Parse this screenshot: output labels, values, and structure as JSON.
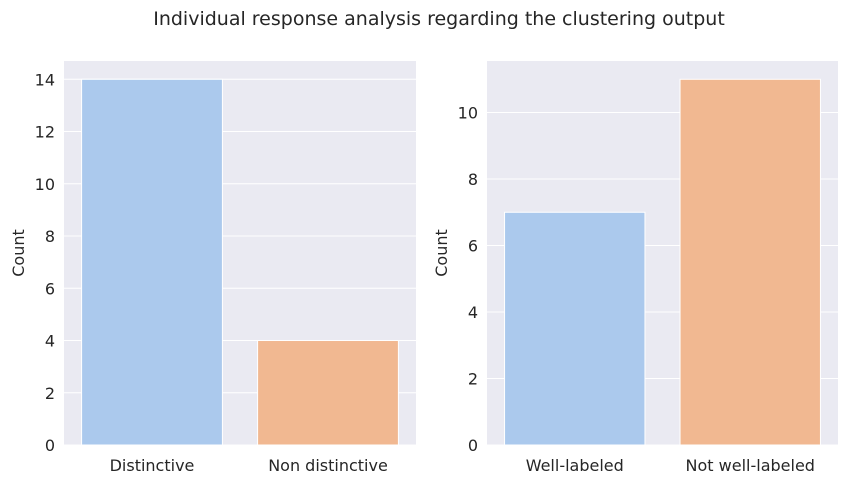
{
  "figure": {
    "title": "Individual response analysis regarding the clustering output"
  },
  "chart_data": [
    {
      "type": "bar",
      "categories": [
        "Distinctive",
        "Non distinctive"
      ],
      "values": [
        14,
        4
      ],
      "title": "",
      "xlabel": "",
      "ylabel": "Count",
      "ylim": [
        0,
        14.7
      ],
      "yticks": [
        0,
        2,
        4,
        6,
        8,
        10,
        12,
        14
      ],
      "colors": [
        "#abc9ed",
        "#f1b891"
      ],
      "grid": true,
      "background": "#eaeaf2"
    },
    {
      "type": "bar",
      "categories": [
        "Well-labeled",
        "Not well-labeled"
      ],
      "values": [
        7,
        11
      ],
      "title": "",
      "xlabel": "",
      "ylabel": "Count",
      "ylim": [
        0,
        11.55
      ],
      "yticks": [
        0,
        2,
        4,
        6,
        8,
        10
      ],
      "colors": [
        "#abc9ed",
        "#f1b891"
      ],
      "grid": true,
      "background": "#eaeaf2"
    }
  ]
}
